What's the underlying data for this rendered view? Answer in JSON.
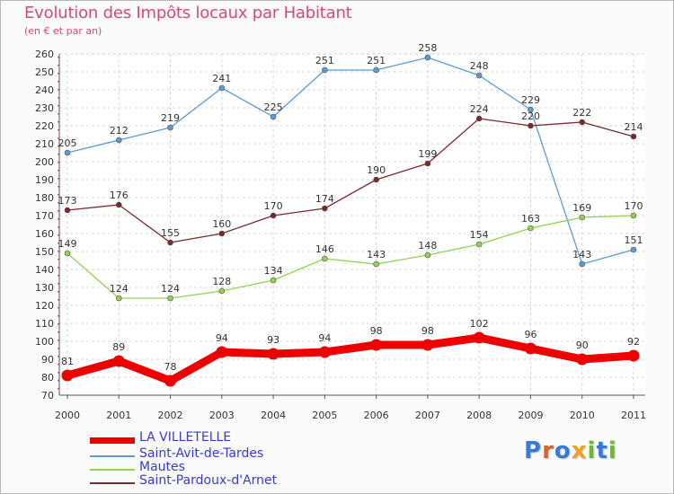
{
  "header": {
    "title": "Evolution des Impôts locaux par Habitant",
    "subtitle": "(en € et par an)"
  },
  "logo": {
    "text": "Proxiti",
    "letters": [
      {
        "ch": "P",
        "color": "#3a7ad6"
      },
      {
        "ch": "r",
        "color": "#e0602a"
      },
      {
        "ch": "o",
        "color": "#3a7ad6"
      },
      {
        "ch": "x",
        "color": "#f0a020"
      },
      {
        "ch": "i",
        "color": "#6ab82e"
      },
      {
        "ch": "t",
        "color": "#3a7ad6"
      },
      {
        "ch": "i",
        "color": "#6ab82e"
      }
    ]
  },
  "chart_data": {
    "type": "line",
    "title": "Evolution des Impôts locaux par Habitant",
    "subtitle": "(en € et par an)",
    "xlabel": "",
    "ylabel": "",
    "categories": [
      "2000",
      "2001",
      "2002",
      "2003",
      "2004",
      "2005",
      "2006",
      "2007",
      "2008",
      "2009",
      "2010",
      "2011"
    ],
    "ylim": [
      70,
      260
    ],
    "yticks": [
      70,
      80,
      90,
      100,
      110,
      120,
      130,
      140,
      150,
      160,
      170,
      180,
      190,
      200,
      210,
      220,
      230,
      240,
      250,
      260
    ],
    "grid": true,
    "legend_position": "bottom-left",
    "series": [
      {
        "name": "LA VILLETELLE",
        "color": "#ee0000",
        "values": [
          81,
          89,
          78,
          94,
          93,
          94,
          98,
          98,
          102,
          96,
          90,
          92
        ],
        "labels": [
          "81",
          "89",
          "78",
          "94",
          "93",
          "94",
          "98",
          "98",
          "102",
          "96",
          "90",
          "92"
        ]
      },
      {
        "name": "Saint-Avit-de-Tardes",
        "color": "#5b9bd5",
        "values": [
          205,
          212,
          219,
          241,
          225,
          251,
          251,
          258,
          248,
          229,
          143,
          151
        ],
        "labels": [
          "205",
          "212",
          "219",
          "241",
          "225",
          "251",
          "251",
          "258",
          "248",
          "229",
          "143",
          "151"
        ]
      },
      {
        "name": "Mautes",
        "color": "#93d150",
        "values": [
          149,
          124,
          124,
          128,
          134,
          146,
          143,
          148,
          154,
          163,
          169,
          170
        ],
        "labels": [
          "149",
          "124",
          "124",
          "128",
          "134",
          "146",
          "143",
          "148",
          "154",
          "163",
          "169",
          "170"
        ]
      },
      {
        "name": "Saint-Pardoux-d'Arnet",
        "color": "#7a2a2a",
        "values": [
          173,
          176,
          155,
          160,
          170,
          174,
          190,
          199,
          224,
          220,
          222,
          214
        ],
        "labels": [
          "173",
          "176",
          "155",
          "160",
          "170",
          "174",
          "190",
          "199",
          "224",
          "220",
          "222",
          "214"
        ]
      }
    ]
  }
}
